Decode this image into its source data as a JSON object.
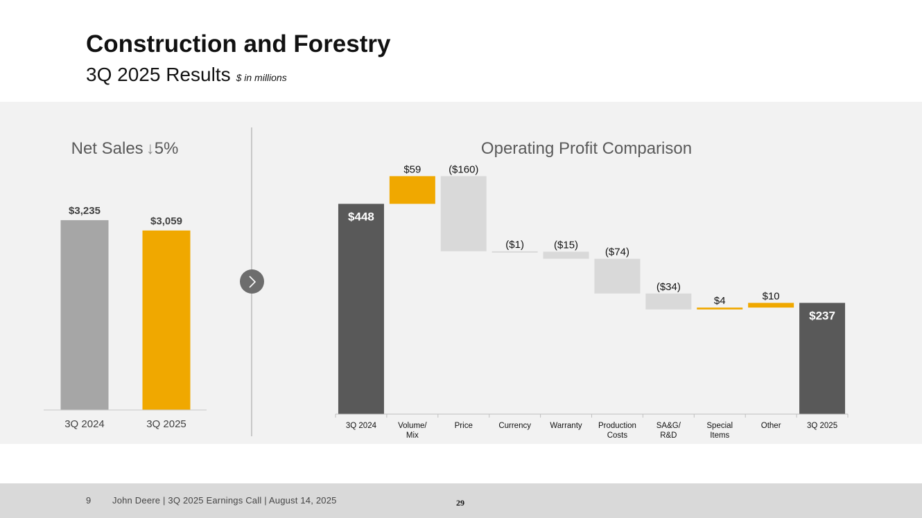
{
  "header": {
    "title": "Construction and Forestry",
    "subtitle": "3Q 2025 Results",
    "units_note": "$ in millions"
  },
  "chart_data": [
    {
      "type": "bar",
      "title": "Net Sales",
      "title_change": "5%",
      "title_change_direction": "down",
      "categories": [
        "3Q 2024",
        "3Q 2025"
      ],
      "values": [
        3235,
        3059
      ],
      "value_labels": [
        "$3,235",
        "$3,059"
      ],
      "colors": [
        "#a6a6a6",
        "#f0a800"
      ],
      "ylim": [
        0,
        3600
      ]
    },
    {
      "type": "bar",
      "subtype": "waterfall",
      "title": "Operating Profit Comparison",
      "categories": [
        "3Q 2024",
        "Volume/\nMix",
        "Price",
        "Currency",
        "Warranty",
        "Production\nCosts",
        "SA&G/\nR&D",
        "Special\nItems",
        "Other",
        "3Q 2025"
      ],
      "values": [
        448,
        59,
        -160,
        -1,
        -15,
        -74,
        -34,
        4,
        10,
        237
      ],
      "kinds": [
        "total",
        "delta",
        "delta",
        "delta",
        "delta",
        "delta",
        "delta",
        "delta",
        "delta",
        "total"
      ],
      "value_labels": [
        "$448",
        "$59",
        "($160)",
        "($1)",
        "($15)",
        "($74)",
        "($34)",
        "$4",
        "$10",
        "$237"
      ],
      "colors": {
        "total": "#595959",
        "increase": "#f0a800",
        "decrease": "#d9d9d9"
      },
      "ylim": [
        0,
        540
      ]
    }
  ],
  "footer": {
    "page_number": "9",
    "text": "John Deere | 3Q 2025 Earnings Call | August 14, 2025",
    "slide_number": "29"
  }
}
